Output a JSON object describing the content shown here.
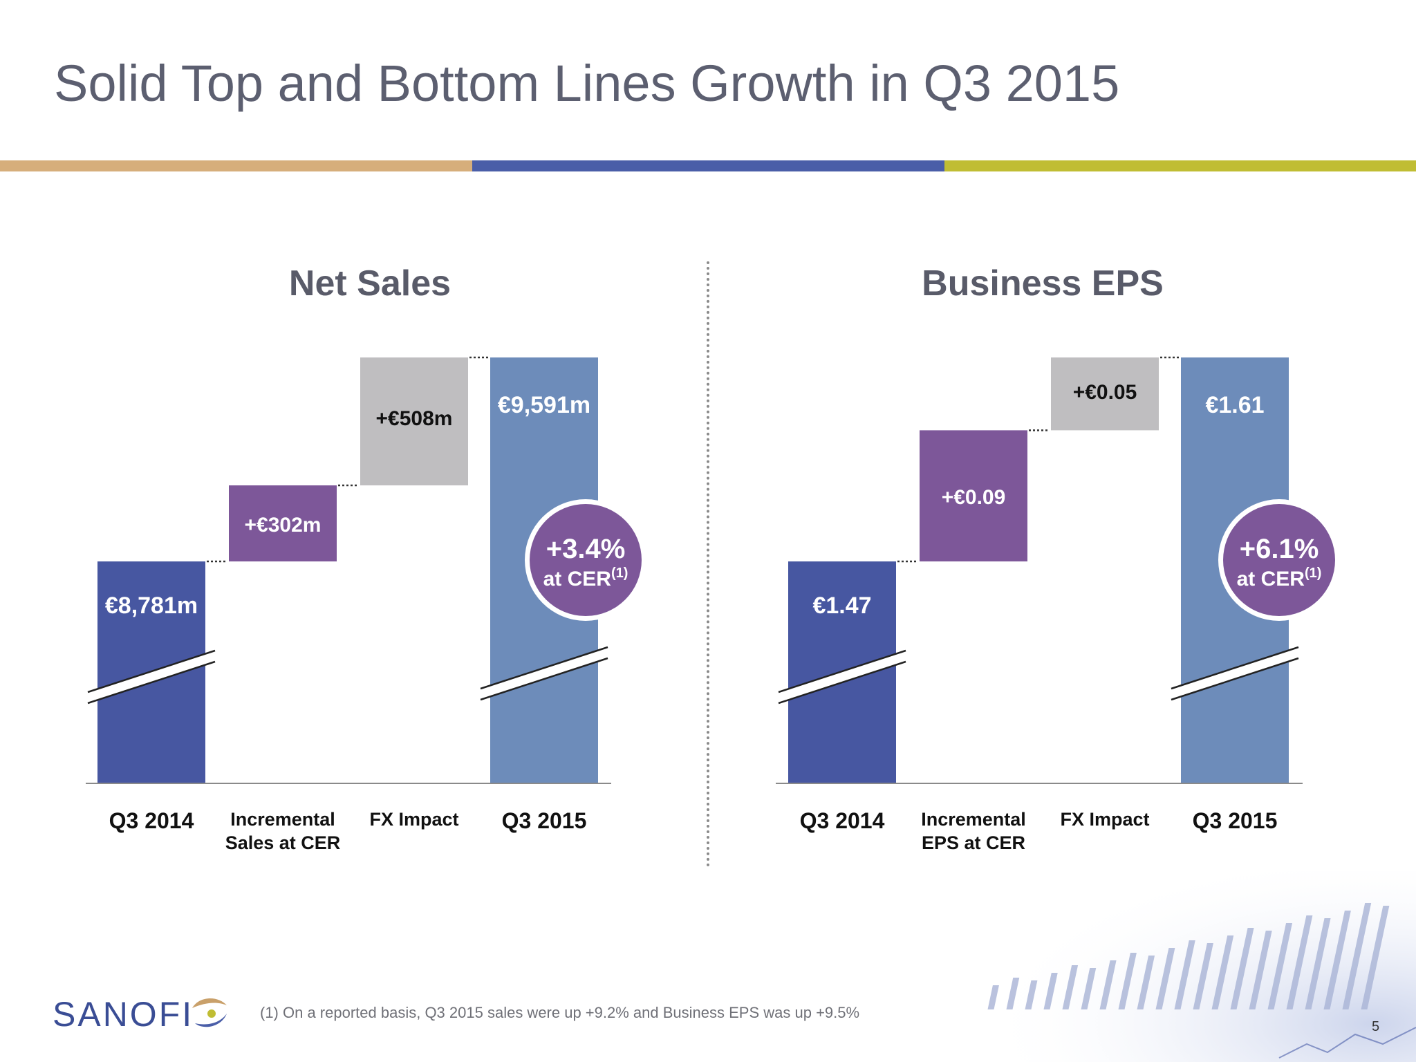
{
  "slide": {
    "title": "Solid Top and Bottom Lines Growth in Q3 2015",
    "page_number": "5",
    "footnote": "(1)  On a reported basis, Q3 2015 sales were up +9.2% and Business EPS was up +9.5%",
    "logo_text": "SANOFI"
  },
  "colors": {
    "stripe_tan": "#d6ae7b",
    "stripe_blue": "#4a5ea8",
    "stripe_olive": "#c0bd33",
    "bar_dark_blue": "#4757a1",
    "bar_purple": "#7d5799",
    "bar_grey": "#bfbec0",
    "bar_light_blue": "#6d8cba",
    "badge_purple": "#7d5799"
  },
  "chart_data": [
    {
      "type": "bar",
      "subtype": "waterfall",
      "title": "Net Sales",
      "categories": [
        "Q3 2014",
        "Incremental\nSales at CER",
        "FX Impact",
        "Q3 2015"
      ],
      "values": [
        8781,
        302,
        508,
        9591
      ],
      "measures": [
        "absolute",
        "relative",
        "relative",
        "total"
      ],
      "data_labels": [
        "€8,781m",
        "+€302m",
        "+€508m",
        "€9,591m"
      ],
      "axis_break": true,
      "badge": {
        "value": "+3.4%",
        "label": "at CER",
        "superscript": "(1)"
      }
    },
    {
      "type": "bar",
      "subtype": "waterfall",
      "title": "Business EPS",
      "categories": [
        "Q3 2014",
        "Incremental\nEPS at CER",
        "FX Impact",
        "Q3 2015"
      ],
      "values": [
        1.47,
        0.09,
        0.05,
        1.61
      ],
      "measures": [
        "absolute",
        "relative",
        "relative",
        "total"
      ],
      "data_labels": [
        "€1.47",
        "+€0.09",
        "+€0.05",
        "€1.61"
      ],
      "axis_break": true,
      "badge": {
        "value": "+6.1%",
        "label": "at CER",
        "superscript": "(1)"
      }
    }
  ]
}
